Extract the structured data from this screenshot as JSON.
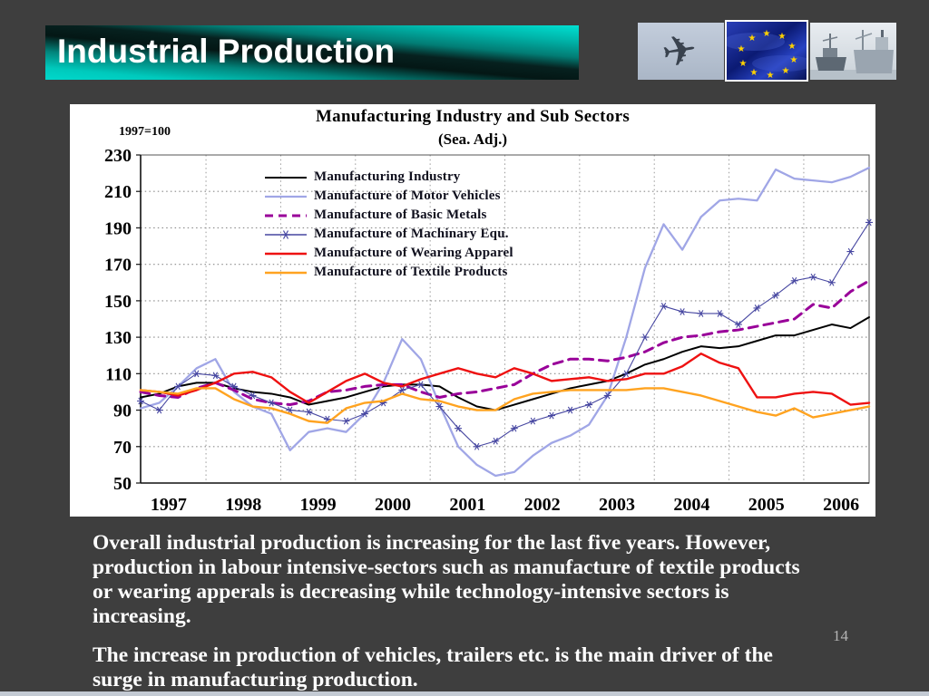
{
  "slide": {
    "background": "#3e3e3e",
    "page_number": "14"
  },
  "header": {
    "title": "Industrial Production",
    "banner_teal": "#00b5aa",
    "images": [
      {
        "name": "airplane-photo"
      },
      {
        "name": "eu-flag-photo"
      },
      {
        "name": "ships-photo"
      }
    ]
  },
  "chart_data": {
    "type": "line",
    "title": "Manufacturing Industry and Sub Sectors",
    "subtitle": "(Sea. Adj.)",
    "index_note": "1997=100",
    "x_unit": "quarterly",
    "x_years": [
      "1997",
      "1998",
      "1999",
      "2000",
      "2001",
      "2002",
      "2003",
      "2004",
      "2005",
      "2006"
    ],
    "ylim": [
      50,
      230
    ],
    "ytick_step": 20,
    "grid": "dotted",
    "legend_position": "inside-top-left",
    "series": [
      {
        "name": "Manufacturing Industry",
        "color": "#000000",
        "style": "solid",
        "width": 2,
        "values": [
          97,
          99,
          103,
          105,
          105,
          102,
          100,
          99,
          97,
          93,
          95,
          97,
          100,
          103,
          104,
          104,
          103,
          97,
          92,
          90,
          93,
          96,
          99,
          102,
          104,
          106,
          110,
          115,
          118,
          122,
          125,
          124,
          125,
          128,
          131,
          131,
          134,
          137,
          135,
          141
        ]
      },
      {
        "name": "Manufacture of Motor Vehicles",
        "color": "#a0a6e6",
        "style": "solid",
        "width": 2.3,
        "values": [
          91,
          94,
          103,
          113,
          118,
          100,
          92,
          88,
          68,
          78,
          80,
          78,
          88,
          105,
          129,
          118,
          93,
          70,
          60,
          54,
          56,
          65,
          72,
          76,
          82,
          98,
          130,
          168,
          192,
          178,
          196,
          205,
          206,
          205,
          222,
          217,
          216,
          215,
          218,
          223
        ]
      },
      {
        "name": "Manufacture of Basic Metals",
        "color": "#990099",
        "style": "dashed",
        "width": 3,
        "values": [
          100,
          98,
          97,
          102,
          105,
          101,
          96,
          94,
          93,
          95,
          100,
          101,
          103,
          104,
          104,
          100,
          97,
          99,
          100,
          102,
          104,
          110,
          115,
          118,
          118,
          117,
          119,
          122,
          127,
          130,
          131,
          133,
          134,
          136,
          138,
          140,
          148,
          146,
          155,
          161
        ]
      },
      {
        "name": "Manufacture of Machinary Equ.",
        "color": "#4747a1",
        "style": "solid",
        "width": 1.1,
        "marker": "asterisk",
        "values": [
          95,
          90,
          103,
          110,
          109,
          103,
          98,
          94,
          90,
          89,
          85,
          84,
          88,
          94,
          101,
          104,
          92,
          80,
          70,
          73,
          80,
          84,
          87,
          90,
          93,
          98,
          110,
          130,
          147,
          144,
          143,
          143,
          137,
          146,
          153,
          161,
          163,
          160,
          177,
          193
        ]
      },
      {
        "name": "Manufacture of Wearing Apparel",
        "color": "#ee1111",
        "style": "solid",
        "width": 2.4,
        "values": [
          101,
          100,
          98,
          101,
          105,
          110,
          111,
          108,
          100,
          94,
          100,
          106,
          110,
          105,
          103,
          107,
          110,
          113,
          110,
          108,
          113,
          110,
          106,
          107,
          108,
          106,
          107,
          110,
          110,
          114,
          121,
          116,
          113,
          97,
          97,
          99,
          100,
          99,
          93,
          94
        ]
      },
      {
        "name": "Manufacture of Textile Products",
        "color": "#ffa320",
        "style": "solid",
        "width": 2.4,
        "values": [
          101,
          100,
          99,
          102,
          102,
          96,
          92,
          91,
          88,
          84,
          83,
          91,
          94,
          95,
          99,
          96,
          95,
          92,
          90,
          90,
          96,
          99,
          100,
          101,
          101,
          101,
          101,
          102,
          102,
          100,
          98,
          95,
          92,
          89,
          87,
          91,
          86,
          88,
          90,
          92
        ]
      }
    ]
  },
  "body": {
    "paragraph1_lines": [
      "Overall industrial production is increasing for the last five years. However,",
      "production in labour intensive-sectors such as manufacture of textile products",
      "or wearing apperals is decreasing while technology-intensive sectors is",
      "increasing."
    ],
    "paragraph2_lines": [
      "The increase in production of vehicles, trailers etc. is the main driver of the",
      "surge in manufacturing production."
    ]
  }
}
